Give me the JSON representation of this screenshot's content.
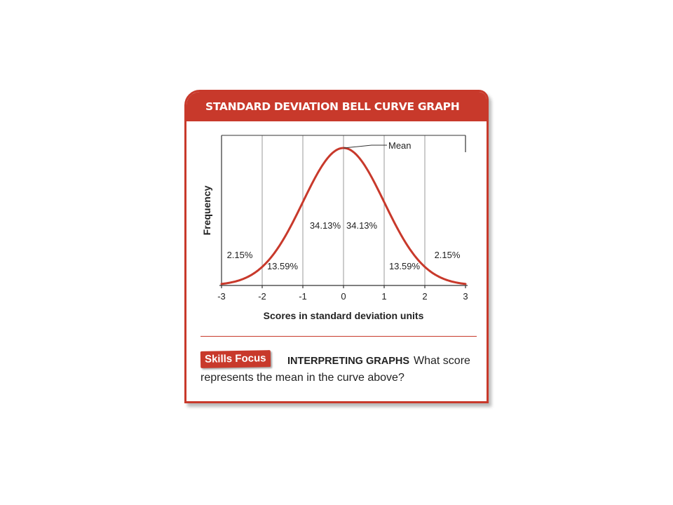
{
  "header": {
    "title": "STANDARD DEVIATION BELL CURVE GRAPH"
  },
  "chart_data": {
    "type": "line",
    "title": "",
    "xlabel": "Scores in standard deviation units",
    "ylabel": "Frequency",
    "xlim": [
      -3,
      3
    ],
    "x_ticks": [
      "-3",
      "-2",
      "-1",
      "0",
      "1",
      "2",
      "3"
    ],
    "grid": true,
    "series": [
      {
        "curve": "normal",
        "mean": 0,
        "std_dev": 1,
        "color": "#c8392b"
      }
    ],
    "region_labels": [
      {
        "from": -3,
        "to": -2,
        "label": "2.15%"
      },
      {
        "from": -2,
        "to": -1,
        "label": "13.59%"
      },
      {
        "from": -1,
        "to": 0,
        "label": "34.13%"
      },
      {
        "from": 0,
        "to": 1,
        "label": "34.13%"
      },
      {
        "from": 1,
        "to": 2,
        "label": "13.59%"
      },
      {
        "from": 2,
        "to": 3,
        "label": "2.15%"
      }
    ],
    "annotations": [
      {
        "text": "Mean",
        "points_to_x": 0
      }
    ]
  },
  "skills": {
    "badge": "Skills Focus",
    "label": "INTERPRETING GRAPHS",
    "question": "What score represents the mean in the curve above?"
  },
  "colors": {
    "accent": "#c8392b",
    "grid": "#9a9a9a",
    "text": "#222222"
  }
}
